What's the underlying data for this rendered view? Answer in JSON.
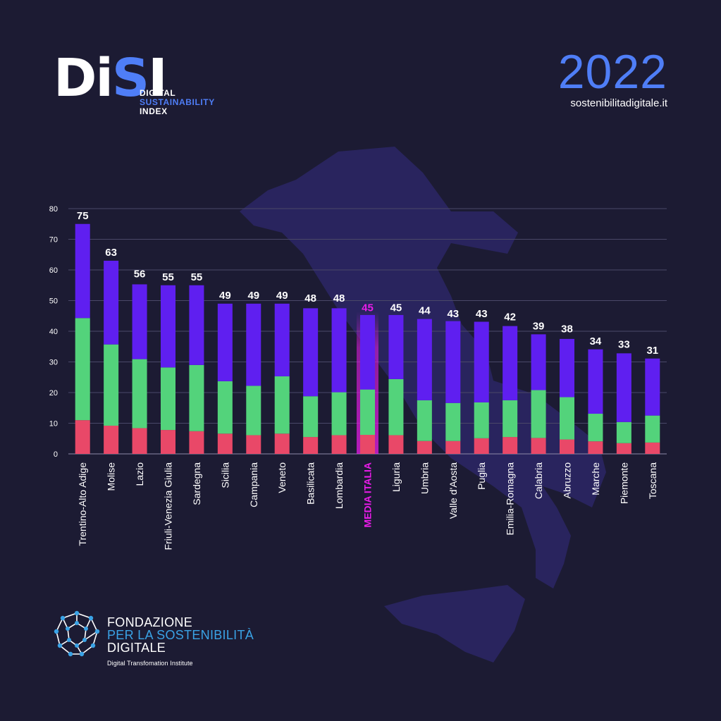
{
  "header": {
    "logo_word": "DiSI",
    "logo_line1": "DIGITAL",
    "logo_line2": "SUSTAINABILITY",
    "logo_line3": "INDEX",
    "year": "2022",
    "website": "sostenibilitadigitale.it"
  },
  "footer": {
    "org_line1": "FONDAZIONE",
    "org_line2": "PER LA SOSTENIBILITÀ",
    "org_line3": "DIGITALE",
    "tagline": "Digital Transfomation Institute"
  },
  "colors": {
    "background": "#1c1b33",
    "map": "#2c2666",
    "bar_top": "#5f1ff0",
    "bar_mid": "#53d37b",
    "bar_base": "#e94868",
    "highlight": "#e81ce8",
    "accent_blue": "#4f7ef7"
  },
  "chart_data": {
    "type": "bar",
    "stacked": true,
    "ylim": [
      0,
      80
    ],
    "yticks": [
      0,
      10,
      20,
      30,
      40,
      50,
      60,
      70,
      80
    ],
    "grid": true,
    "highlight_category": "MEDIA ITALIA",
    "categories": [
      "Trentino-Alto Adige",
      "Molise",
      "Lazio",
      "Friuli-Venezia Giulia",
      "Sardegna",
      "Sicilia",
      "Campania",
      "Veneto",
      "Basilicata",
      "Lombardia",
      "MEDIA ITALIA",
      "Liguria",
      "Umbria",
      "Valle d'Aosta",
      "Puglia",
      "Emilia-Romagna",
      "Calabria",
      "Abruzzo",
      "Marche",
      "Piemonte",
      "Toscana"
    ],
    "totals": [
      75,
      63,
      56,
      55,
      55,
      49,
      49,
      49,
      48,
      48,
      45,
      45,
      44,
      43,
      43,
      42,
      39,
      38,
      34,
      33,
      31
    ],
    "series": [
      {
        "color": "#e94868",
        "values": [
          11,
          9.2,
          8.4,
          7.8,
          7.4,
          6.6,
          6.1,
          6.6,
          5.5,
          6.1,
          6.2,
          6.1,
          4.2,
          4.2,
          5.1,
          5.5,
          5.2,
          4.7,
          4.1,
          3.5,
          3.7
        ]
      },
      {
        "color": "#53d37b",
        "values": [
          33.3,
          26.5,
          22.5,
          20.4,
          21.6,
          17.1,
          16.1,
          18.7,
          13.3,
          14.0,
          14.8,
          18.3,
          13.3,
          12.4,
          11.7,
          12.0,
          15.6,
          13.8,
          9.0,
          6.9,
          8.8
        ]
      },
      {
        "color": "#5f1ff0",
        "values": [
          30.7,
          27.3,
          24.4,
          26.8,
          26.0,
          25.3,
          26.8,
          23.7,
          28.7,
          27.4,
          24.3,
          20.9,
          26.5,
          26.7,
          26.3,
          24.2,
          18.2,
          19.0,
          21.0,
          22.4,
          18.6
        ]
      }
    ]
  }
}
